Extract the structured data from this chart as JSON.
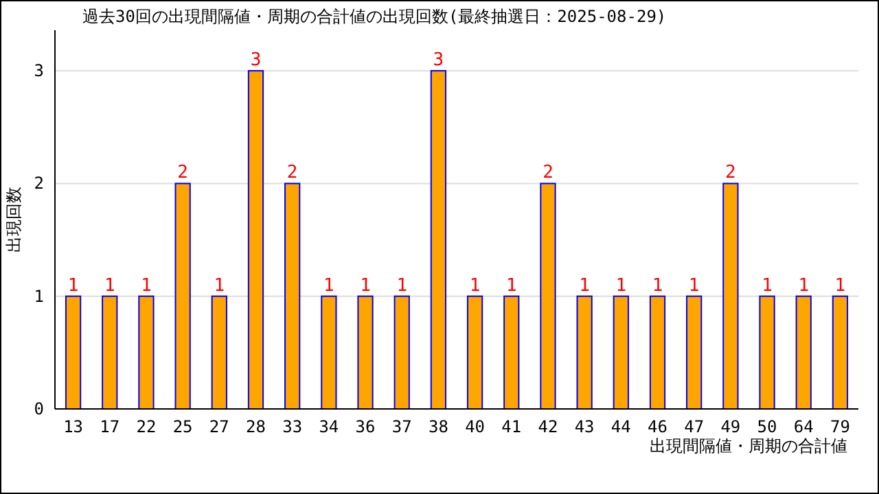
{
  "chart_data": {
    "type": "bar",
    "title": "過去30回の出現間隔値・周期の合計値の出現回数(最終抽選日：2025-08-29)",
    "xlabel": "出現間隔値・周期の合計値",
    "ylabel": "出現回数",
    "categories": [
      "13",
      "17",
      "22",
      "25",
      "27",
      "28",
      "33",
      "34",
      "36",
      "37",
      "38",
      "40",
      "41",
      "42",
      "43",
      "44",
      "46",
      "47",
      "49",
      "50",
      "64",
      "79"
    ],
    "series": [
      {
        "color": "#ffa500",
        "values": [
          1,
          1,
          1,
          2,
          1,
          3,
          2,
          1,
          1,
          1,
          3,
          1,
          1,
          2,
          1,
          1,
          1,
          1,
          2,
          1,
          1,
          1
        ]
      }
    ],
    "ylim": [
      0,
      3.36
    ],
    "yticks": [
      0,
      1,
      2,
      3
    ],
    "grid": "y",
    "data_labels": true
  }
}
